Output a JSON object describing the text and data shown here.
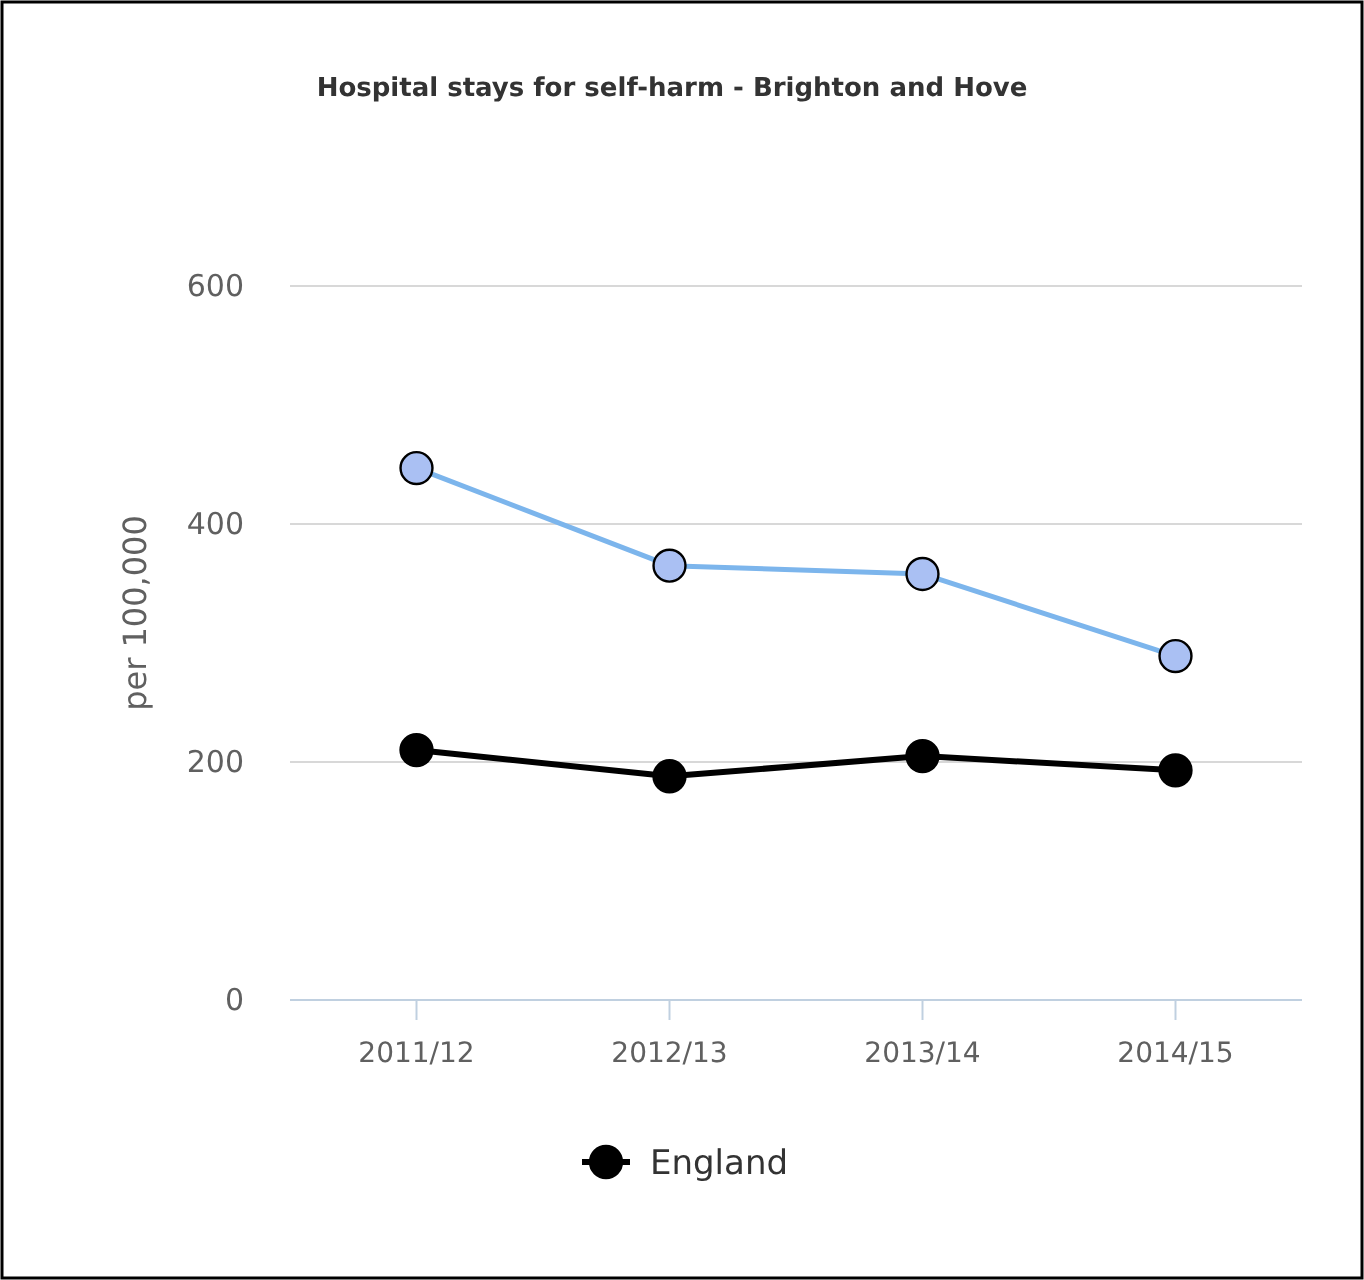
{
  "chart_data": {
    "type": "line",
    "title": "Hospital stays for self-harm - Brighton and Hove",
    "ylabel": "per 100,000",
    "categories": [
      "2011/12",
      "2012/13",
      "2013/14",
      "2014/15"
    ],
    "series": [
      {
        "color": "#7cb5ec",
        "values": [
          447,
          365,
          358,
          289
        ]
      },
      {
        "name": "England",
        "color": "#000000",
        "values": [
          210,
          188,
          205,
          193
        ]
      }
    ],
    "ylim": [
      0,
      600
    ],
    "yticks": [
      0,
      200,
      400,
      600
    ],
    "grid": "y",
    "legend": "bottom",
    "marker": "circle"
  }
}
